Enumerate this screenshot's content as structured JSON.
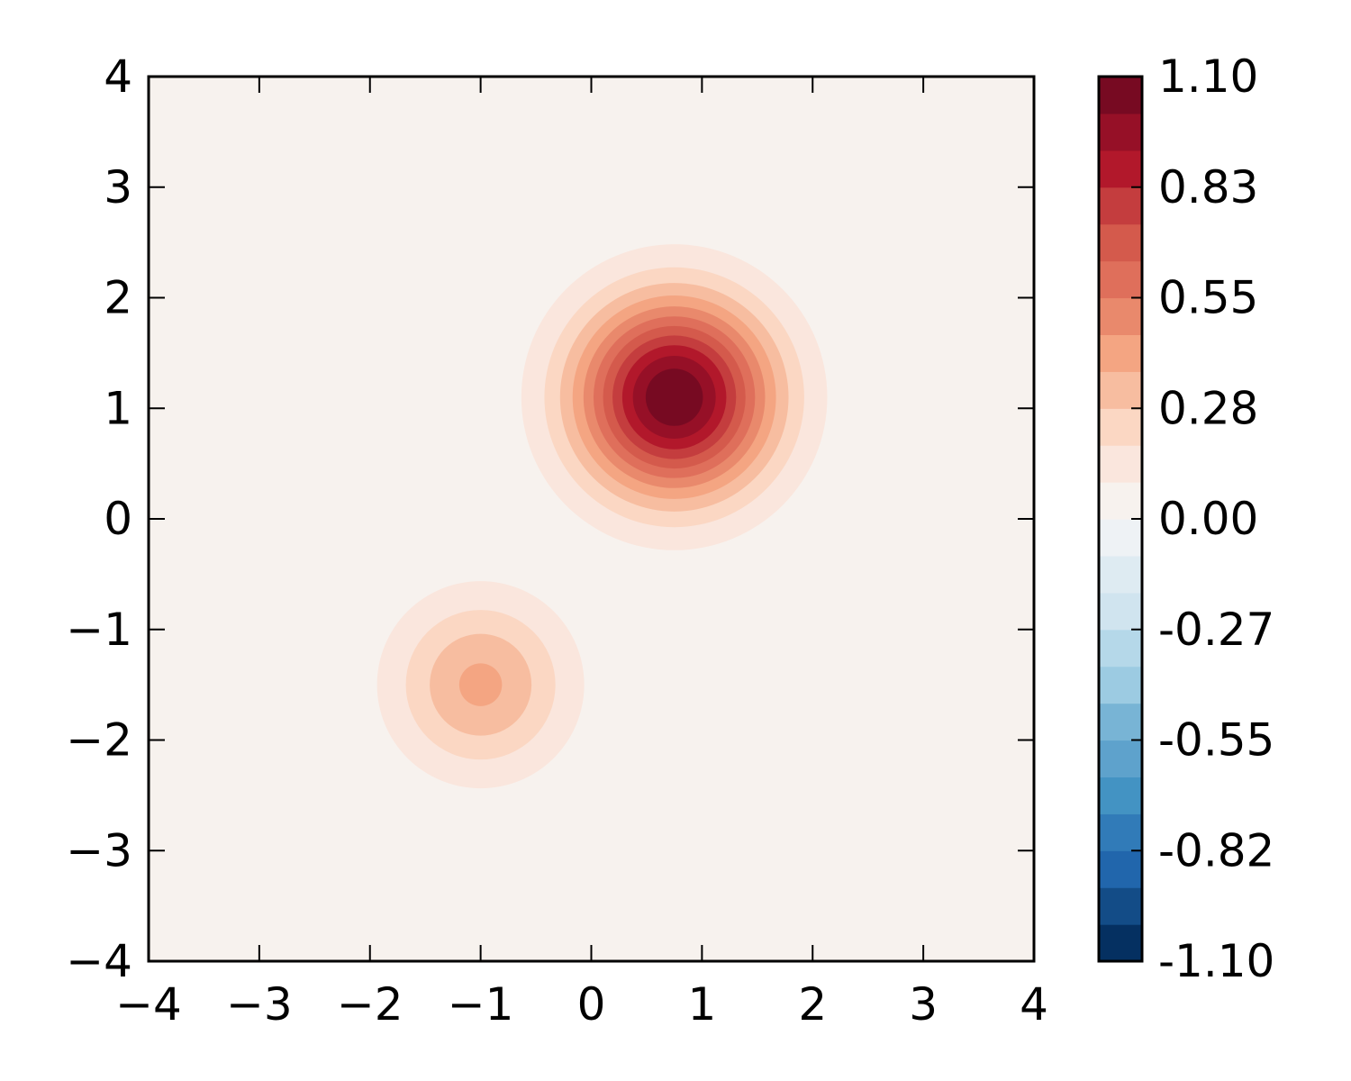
{
  "chart_data": {
    "type": "heatmap",
    "subtype": "filled-contour",
    "title": "",
    "xlabel": "",
    "ylabel": "",
    "xlim": [
      -4,
      4
    ],
    "ylim": [
      -4,
      4
    ],
    "x_ticks": [
      -4,
      -3,
      -2,
      -1,
      0,
      1,
      2,
      3,
      4
    ],
    "y_ticks": [
      -4,
      -3,
      -2,
      -1,
      0,
      1,
      2,
      3,
      4
    ],
    "x_tick_labels": [
      "−4",
      "−3",
      "−2",
      "−1",
      "0",
      "1",
      "2",
      "3",
      "4"
    ],
    "y_tick_labels": [
      "−4",
      "−3",
      "−2",
      "−1",
      "0",
      "1",
      "2",
      "3",
      "4"
    ],
    "grid": false,
    "colormap": "RdBu_r",
    "peaks": [
      {
        "x": 0.75,
        "y": 1.1,
        "value": 1.1,
        "sigma": 0.62
      },
      {
        "x": -1.0,
        "y": -1.5,
        "value": 0.39,
        "sigma": 0.55
      }
    ],
    "background_value": 0.0,
    "colorbar": {
      "min": -1.1,
      "max": 1.1,
      "levels": 24,
      "tick_values": [
        1.1,
        0.825,
        0.55,
        0.275,
        0.0,
        -0.275,
        -0.55,
        -0.825,
        -1.1
      ],
      "tick_labels": [
        "1.10",
        "0.83",
        "0.55",
        "0.28",
        "0.00",
        "-0.27",
        "-0.55",
        "-0.82",
        "-1.10"
      ],
      "colors_bottom_to_top": [
        "#053061",
        "#134c87",
        "#2166ac",
        "#317bb8",
        "#4393c3",
        "#5ea2cc",
        "#78b4d5",
        "#9ccbe2",
        "#b5d8e9",
        "#d0e4ef",
        "#deebf2",
        "#eef2f5",
        "#f7f2ee",
        "#fae6dd",
        "#fbd7c3",
        "#f7bda0",
        "#f4a582",
        "#e9896c",
        "#df6f5b",
        "#d45a4c",
        "#c43d3e",
        "#b2182b",
        "#961027",
        "#770a22"
      ]
    }
  }
}
